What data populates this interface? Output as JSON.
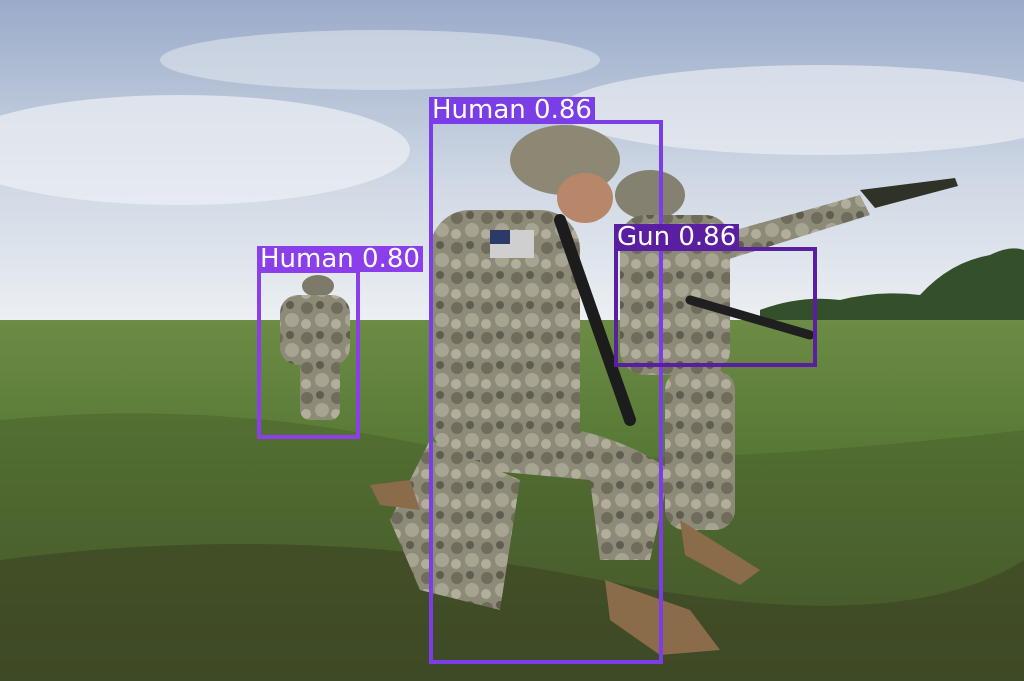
{
  "detections": [
    {
      "label": "Human 0.86",
      "color": "#7b3ee6"
    },
    {
      "label": "Human 0.80",
      "color": "#8a3fea"
    },
    {
      "label": "Gun 0.86",
      "color": "#5a1fa0"
    }
  ],
  "colors": {
    "sky_top": "#9fb0cf",
    "sky_bottom": "#e6ecf2",
    "grass": "#4f6b33",
    "grass_dark": "#3b4a24",
    "camo": "#8e8a78"
  }
}
